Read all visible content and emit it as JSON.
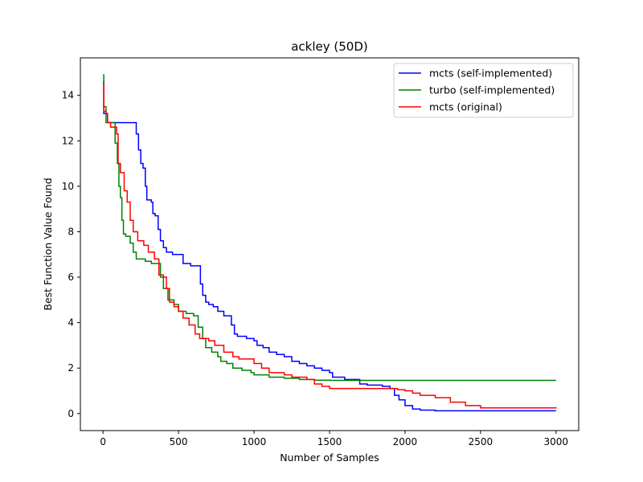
{
  "chart_data": {
    "type": "line",
    "title": "ackley (50D)",
    "xlabel": "Number of Samples",
    "ylabel": "Best Function Value Found",
    "xlim": [
      -150,
      3150
    ],
    "ylim": [
      -0.75,
      15.65
    ],
    "xticks": [
      0,
      500,
      1000,
      1500,
      2000,
      2500,
      3000
    ],
    "yticks": [
      0,
      2,
      4,
      6,
      8,
      10,
      12,
      14
    ],
    "grid": false,
    "legend_position": "top-right",
    "series": [
      {
        "name": "mcts (self-implemented)",
        "color": "#0000ff",
        "points": [
          [
            0,
            14.6
          ],
          [
            5,
            13.2
          ],
          [
            30,
            12.8
          ],
          [
            210,
            12.8
          ],
          [
            220,
            12.3
          ],
          [
            235,
            11.6
          ],
          [
            250,
            11.0
          ],
          [
            265,
            10.8
          ],
          [
            280,
            10.0
          ],
          [
            290,
            9.4
          ],
          [
            320,
            9.3
          ],
          [
            330,
            8.8
          ],
          [
            345,
            8.7
          ],
          [
            365,
            8.1
          ],
          [
            380,
            7.6
          ],
          [
            400,
            7.3
          ],
          [
            420,
            7.1
          ],
          [
            460,
            7.0
          ],
          [
            530,
            6.6
          ],
          [
            580,
            6.5
          ],
          [
            640,
            6.5
          ],
          [
            645,
            5.7
          ],
          [
            660,
            5.2
          ],
          [
            680,
            4.9
          ],
          [
            700,
            4.8
          ],
          [
            730,
            4.7
          ],
          [
            760,
            4.5
          ],
          [
            800,
            4.3
          ],
          [
            840,
            4.3
          ],
          [
            850,
            3.9
          ],
          [
            870,
            3.5
          ],
          [
            890,
            3.4
          ],
          [
            950,
            3.3
          ],
          [
            1000,
            3.2
          ],
          [
            1020,
            3.0
          ],
          [
            1060,
            2.9
          ],
          [
            1100,
            2.7
          ],
          [
            1150,
            2.6
          ],
          [
            1200,
            2.5
          ],
          [
            1250,
            2.3
          ],
          [
            1300,
            2.2
          ],
          [
            1350,
            2.1
          ],
          [
            1400,
            2.0
          ],
          [
            1450,
            1.9
          ],
          [
            1500,
            1.8
          ],
          [
            1520,
            1.6
          ],
          [
            1600,
            1.5
          ],
          [
            1700,
            1.3
          ],
          [
            1750,
            1.25
          ],
          [
            1850,
            1.2
          ],
          [
            1900,
            1.1
          ],
          [
            1930,
            0.8
          ],
          [
            1960,
            0.6
          ],
          [
            2000,
            0.35
          ],
          [
            2050,
            0.2
          ],
          [
            2100,
            0.15
          ],
          [
            2200,
            0.12
          ],
          [
            2500,
            0.12
          ],
          [
            3000,
            0.12
          ]
        ]
      },
      {
        "name": "turbo (self-implemented)",
        "color": "#008000",
        "points": [
          [
            0,
            14.9
          ],
          [
            5,
            13.5
          ],
          [
            20,
            12.8
          ],
          [
            60,
            12.8
          ],
          [
            80,
            11.9
          ],
          [
            95,
            11.0
          ],
          [
            105,
            10.0
          ],
          [
            115,
            9.5
          ],
          [
            125,
            8.5
          ],
          [
            135,
            7.9
          ],
          [
            150,
            7.8
          ],
          [
            180,
            7.5
          ],
          [
            200,
            7.1
          ],
          [
            220,
            6.8
          ],
          [
            280,
            6.7
          ],
          [
            320,
            6.6
          ],
          [
            380,
            6.0
          ],
          [
            400,
            5.5
          ],
          [
            430,
            5.0
          ],
          [
            470,
            4.8
          ],
          [
            500,
            4.5
          ],
          [
            550,
            4.4
          ],
          [
            600,
            4.3
          ],
          [
            630,
            3.8
          ],
          [
            660,
            3.3
          ],
          [
            680,
            2.9
          ],
          [
            720,
            2.7
          ],
          [
            760,
            2.5
          ],
          [
            780,
            2.3
          ],
          [
            820,
            2.2
          ],
          [
            860,
            2.0
          ],
          [
            920,
            1.9
          ],
          [
            980,
            1.8
          ],
          [
            1000,
            1.7
          ],
          [
            1100,
            1.6
          ],
          [
            1200,
            1.55
          ],
          [
            1300,
            1.5
          ],
          [
            1400,
            1.47
          ],
          [
            1500,
            1.46
          ],
          [
            2000,
            1.46
          ],
          [
            3000,
            1.46
          ]
        ]
      },
      {
        "name": "mcts (original)",
        "color": "#ff0000",
        "points": [
          [
            0,
            14.5
          ],
          [
            5,
            13.3
          ],
          [
            20,
            13.2
          ],
          [
            30,
            12.8
          ],
          [
            50,
            12.6
          ],
          [
            90,
            12.3
          ],
          [
            100,
            11.0
          ],
          [
            115,
            10.6
          ],
          [
            140,
            9.8
          ],
          [
            160,
            9.3
          ],
          [
            180,
            8.5
          ],
          [
            200,
            8.0
          ],
          [
            230,
            7.6
          ],
          [
            270,
            7.4
          ],
          [
            300,
            7.1
          ],
          [
            340,
            6.8
          ],
          [
            370,
            6.1
          ],
          [
            400,
            6.0
          ],
          [
            420,
            5.5
          ],
          [
            440,
            4.9
          ],
          [
            470,
            4.7
          ],
          [
            500,
            4.5
          ],
          [
            530,
            4.2
          ],
          [
            570,
            3.9
          ],
          [
            610,
            3.5
          ],
          [
            640,
            3.3
          ],
          [
            700,
            3.2
          ],
          [
            740,
            3.0
          ],
          [
            800,
            2.7
          ],
          [
            860,
            2.5
          ],
          [
            900,
            2.4
          ],
          [
            1000,
            2.2
          ],
          [
            1050,
            2.0
          ],
          [
            1100,
            1.8
          ],
          [
            1200,
            1.7
          ],
          [
            1250,
            1.6
          ],
          [
            1350,
            1.5
          ],
          [
            1400,
            1.3
          ],
          [
            1450,
            1.2
          ],
          [
            1500,
            1.1
          ],
          [
            1900,
            1.1
          ],
          [
            1950,
            1.05
          ],
          [
            2000,
            1.0
          ],
          [
            2050,
            0.9
          ],
          [
            2100,
            0.8
          ],
          [
            2200,
            0.7
          ],
          [
            2300,
            0.5
          ],
          [
            2400,
            0.35
          ],
          [
            2500,
            0.25
          ],
          [
            3000,
            0.22
          ]
        ]
      }
    ]
  }
}
